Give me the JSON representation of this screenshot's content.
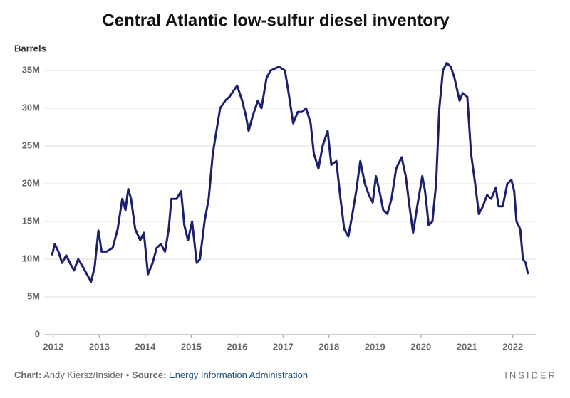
{
  "chart_data": {
    "type": "line",
    "title": "Central Atlantic low-sulfur diesel inventory",
    "y_label": "Barrels",
    "xlim": [
      2011.8,
      2022.5
    ],
    "xticks": [
      2012,
      2013,
      2014,
      2015,
      2016,
      2017,
      2018,
      2019,
      2020,
      2021,
      2022
    ],
    "ylim": [
      0,
      35000000
    ],
    "yticks": [
      0,
      {
        "value": 5000000,
        "label": "5M"
      },
      {
        "value": 10000000,
        "label": "10M"
      },
      {
        "value": 15000000,
        "label": "15M"
      },
      {
        "value": 20000000,
        "label": "20M"
      },
      {
        "value": 25000000,
        "label": "25M"
      },
      {
        "value": 30000000,
        "label": "30M"
      },
      {
        "value": 35000000,
        "label": "35M"
      }
    ],
    "grid": true,
    "x": [
      2011.97,
      2012.03,
      2012.11,
      2012.19,
      2012.28,
      2012.36,
      2012.45,
      2012.54,
      2012.64,
      2012.73,
      2012.82,
      2012.9,
      2012.98,
      2013.05,
      2013.16,
      2013.29,
      2013.4,
      2013.5,
      2013.57,
      2013.63,
      2013.69,
      2013.78,
      2013.89,
      2013.97,
      2014.06,
      2014.16,
      2014.25,
      2014.34,
      2014.43,
      2014.51,
      2014.57,
      2014.68,
      2014.78,
      2014.85,
      2014.93,
      2015.02,
      2015.12,
      2015.19,
      2015.29,
      2015.38,
      2015.47,
      2015.55,
      2015.63,
      2015.74,
      2015.83,
      2016.0,
      2016.11,
      2016.19,
      2016.25,
      2016.34,
      2016.45,
      2016.53,
      2016.64,
      2016.73,
      2016.91,
      2017.04,
      2017.12,
      2017.22,
      2017.32,
      2017.41,
      2017.5,
      2017.6,
      2017.67,
      2017.77,
      2017.86,
      2017.97,
      2018.05,
      2018.16,
      2018.25,
      2018.33,
      2018.42,
      2018.51,
      2018.59,
      2018.68,
      2018.78,
      2018.87,
      2018.95,
      2019.02,
      2019.1,
      2019.18,
      2019.27,
      2019.36,
      2019.46,
      2019.58,
      2019.67,
      2019.75,
      2019.83,
      2019.92,
      2020.03,
      2020.09,
      2020.17,
      2020.25,
      2020.33,
      2020.4,
      2020.48,
      2020.56,
      2020.65,
      2020.73,
      2020.84,
      2020.91,
      2021.01,
      2021.09,
      2021.18,
      2021.26,
      2021.35,
      2021.44,
      2021.53,
      2021.63,
      2021.69,
      2021.78,
      2021.88,
      2021.97,
      2022.03,
      2022.08,
      2022.16,
      2022.22,
      2022.28,
      2022.33
    ],
    "series": [
      {
        "name": "Low-sulfur diesel inventory",
        "color": "#1b1f6e",
        "values": [
          10500000,
          12000000,
          11000000,
          9500000,
          10500000,
          9500000,
          8500000,
          10000000,
          9000000,
          8000000,
          7000000,
          9000000,
          13800000,
          11000000,
          11000000,
          11500000,
          14000000,
          18000000,
          16500000,
          19300000,
          18000000,
          14000000,
          12500000,
          13500000,
          8000000,
          9500000,
          11500000,
          12000000,
          11000000,
          14000000,
          18000000,
          18000000,
          19000000,
          14500000,
          12500000,
          15000000,
          9500000,
          10000000,
          15000000,
          18000000,
          24000000,
          27000000,
          30000000,
          31000000,
          31500000,
          33000000,
          31000000,
          29000000,
          27000000,
          29000000,
          31000000,
          30000000,
          34000000,
          35000000,
          35500000,
          35000000,
          32000000,
          28000000,
          29500000,
          29500000,
          30000000,
          28000000,
          24000000,
          22000000,
          25000000,
          27000000,
          22500000,
          23000000,
          18000000,
          14000000,
          13000000,
          16000000,
          19000000,
          23000000,
          20000000,
          18500000,
          17500000,
          21000000,
          19000000,
          16500000,
          16000000,
          18000000,
          22000000,
          23500000,
          21000000,
          17000000,
          13500000,
          17000000,
          21000000,
          19000000,
          14500000,
          15000000,
          20000000,
          30000000,
          35000000,
          36000000,
          35500000,
          34000000,
          31000000,
          32000000,
          31500000,
          24000000,
          20000000,
          16000000,
          17000000,
          18500000,
          18000000,
          19500000,
          17000000,
          17000000,
          20000000,
          20500000,
          19000000,
          15000000,
          14000000,
          10000000,
          9500000,
          8000000
        ]
      }
    ]
  },
  "footer": {
    "chart_label": "Chart:",
    "chart_credit": "Andy Kiersz/Insider",
    "separator": "•",
    "source_label": "Source:",
    "source": "Energy Information Administration",
    "brand": "INSIDER"
  }
}
